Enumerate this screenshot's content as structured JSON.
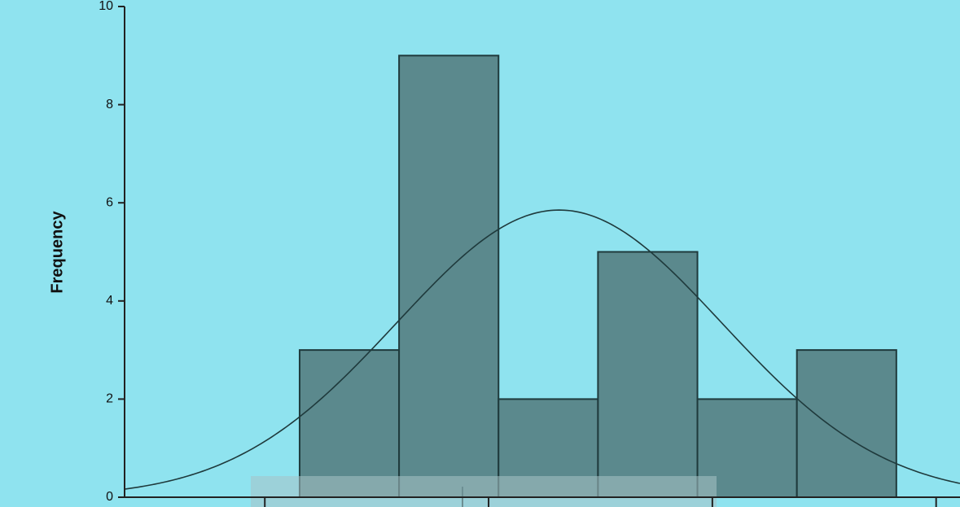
{
  "chart_data": {
    "type": "bar",
    "subtype": "histogram",
    "title": "",
    "xlabel": "",
    "ylabel": "Frequency",
    "ylim": [
      0,
      10
    ],
    "yticks": [
      0,
      2,
      4,
      6,
      8,
      10
    ],
    "xlim": [
      -1.76,
      6.64
    ],
    "xticks_labels_visible": false,
    "bins": [
      {
        "start": 0,
        "end": 1,
        "value": 3
      },
      {
        "start": 1,
        "end": 2,
        "value": 9
      },
      {
        "start": 2,
        "end": 3,
        "value": 2
      },
      {
        "start": 3,
        "end": 4,
        "value": 5
      },
      {
        "start": 4,
        "end": 5,
        "value": 2
      },
      {
        "start": 5,
        "end": 6,
        "value": 3
      }
    ],
    "normal_curve": {
      "mean": 2.61,
      "sd": 1.636,
      "n": 24,
      "bin_width": 1
    },
    "grid": false,
    "legend": "none",
    "colors": {
      "background": "#8fe3ef",
      "plot_area": "#8fe3ef",
      "bar_fill": "#5b898d",
      "bar_edge": "#1f3a3c",
      "curve": "#1f3a3c",
      "axis": "#222222"
    }
  }
}
